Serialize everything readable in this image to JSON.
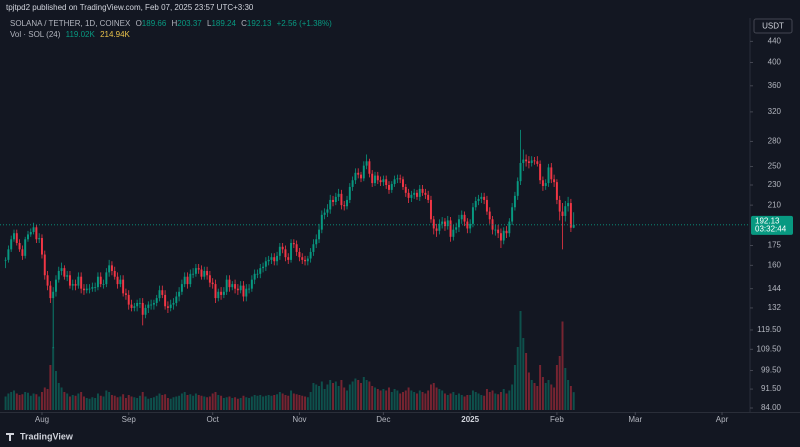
{
  "header": {
    "published": "tpjtpd2 published on TradingView.com, Feb 07, 2025 23:57 UTC+3:30",
    "symbol": "SOLANA / TETHER, 1D, COINEX",
    "o": "O",
    "h": "H",
    "l": "L",
    "c": "C",
    "change": "+2.56 (+1.38%)",
    "volume_title": "Vol · SOL (24)",
    "volume_ma": "214.94K",
    "currency": "USDT",
    "countdown": "03:32:44",
    "brand": "TradingView"
  },
  "chart_data": {
    "type": "candlestick",
    "log_scale": true,
    "grid": false,
    "up_color": "#089981",
    "down_color": "#f23645",
    "ma_color": "#e8c14a",
    "volume_unit": "K",
    "ylim": [
      82.5,
      489
    ],
    "yticks": [
      440,
      400,
      360,
      320,
      280,
      250,
      230,
      210,
      175,
      160,
      144,
      132,
      {
        "value": 119.5,
        "label": "119.50"
      },
      {
        "value": 109.5,
        "label": "109.50"
      },
      {
        "value": 99.5,
        "label": "99.50"
      },
      {
        "value": 91.5,
        "label": "91.50"
      },
      {
        "value": 84,
        "label": "84.00"
      }
    ],
    "xlim": [
      -2,
      266
    ],
    "xticks": [
      {
        "value": 13,
        "label": "Aug"
      },
      {
        "value": 44,
        "label": "Sep"
      },
      {
        "value": 74,
        "label": "Oct"
      },
      {
        "value": 105,
        "label": "Nov"
      },
      {
        "value": 135,
        "label": "Dec"
      },
      {
        "value": 166,
        "label": "2025"
      },
      {
        "value": 197,
        "label": "Feb"
      },
      {
        "value": 225,
        "label": "Mar"
      },
      {
        "value": 256,
        "label": "Apr"
      }
    ],
    "close": [
      164,
      172,
      180,
      185,
      177,
      172,
      167,
      180,
      184,
      186,
      190,
      180,
      181,
      168,
      153,
      146,
      138,
      142,
      150,
      156,
      158,
      152,
      153,
      146,
      147,
      146,
      152,
      144,
      143,
      144,
      144,
      145,
      145,
      152,
      147,
      147,
      155,
      160,
      156,
      152,
      147,
      150,
      141,
      140,
      134,
      132,
      133,
      135,
      135,
      128,
      132,
      134,
      134,
      135,
      138,
      143,
      140,
      133,
      132,
      134,
      135,
      139,
      142,
      147,
      152,
      147,
      154,
      154,
      158,
      157,
      152,
      156,
      153,
      148,
      147,
      138,
      142,
      140,
      142,
      150,
      145,
      147,
      144,
      143,
      146,
      139,
      144,
      144,
      150,
      154,
      154,
      158,
      159,
      163,
      164,
      166,
      163,
      167,
      174,
      172,
      166,
      164,
      177,
      176,
      170,
      166,
      164,
      163,
      165,
      170,
      176,
      180,
      188,
      201,
      203,
      206,
      215,
      213,
      218,
      221,
      210,
      209,
      215,
      228,
      235,
      243,
      241,
      237,
      251,
      256,
      242,
      232,
      240,
      235,
      233,
      236,
      230,
      225,
      231,
      236,
      237,
      236,
      228,
      222,
      217,
      220,
      222,
      218,
      226,
      222,
      220,
      215,
      197,
      189,
      187,
      193,
      195,
      191,
      196,
      182,
      188,
      190,
      197,
      201,
      195,
      189,
      193,
      208,
      214,
      216,
      218,
      215,
      204,
      197,
      188,
      188,
      185,
      179,
      187,
      185,
      195,
      208,
      219,
      234,
      254,
      258,
      256,
      254,
      257,
      256,
      253,
      235,
      229,
      232,
      249,
      236,
      233,
      215,
      204,
      200,
      209,
      212,
      189.66,
      192.13
    ],
    "high": [
      166,
      175,
      183,
      188,
      188,
      180,
      175,
      182,
      187,
      189,
      194,
      192,
      185,
      184,
      171,
      156,
      149,
      145,
      153,
      159,
      162,
      160,
      156,
      156,
      150,
      150,
      155,
      155,
      147,
      147,
      147,
      148,
      148,
      155,
      155,
      150,
      158,
      164,
      163,
      159,
      155,
      153,
      153,
      144,
      143,
      137,
      135,
      137,
      138,
      138,
      134,
      136,
      137,
      137,
      140,
      146,
      146,
      143,
      136,
      137,
      138,
      142,
      145,
      150,
      155,
      155,
      157,
      158,
      161,
      161,
      160,
      159,
      159,
      156,
      151,
      150,
      144,
      145,
      145,
      153,
      153,
      149,
      150,
      147,
      149,
      149,
      147,
      147,
      153,
      157,
      157,
      161,
      162,
      166,
      167,
      169,
      169,
      170,
      177,
      177,
      175,
      169,
      180,
      180,
      179,
      173,
      169,
      167,
      167,
      173,
      180,
      184,
      193,
      205,
      207,
      211,
      220,
      219,
      222,
      226,
      225,
      214,
      219,
      232,
      239,
      248,
      248,
      244,
      256,
      264,
      259,
      246,
      244,
      244,
      239,
      240,
      240,
      234,
      234,
      240,
      241,
      241,
      239,
      231,
      226,
      224,
      226,
      225,
      230,
      230,
      226,
      224,
      219,
      200,
      193,
      197,
      199,
      198,
      200,
      199,
      192,
      194,
      201,
      205,
      204,
      198,
      197,
      212,
      218,
      220,
      222,
      222,
      219,
      208,
      200,
      192,
      192,
      189,
      190,
      191,
      198,
      212,
      223,
      238,
      295,
      270,
      264,
      262,
      262,
      261,
      262,
      257,
      239,
      236,
      253,
      254,
      241,
      236,
      219,
      212,
      214,
      218,
      216,
      203.37
    ],
    "low": [
      158,
      162,
      170,
      178,
      175,
      170,
      164,
      165,
      178,
      182,
      184,
      177,
      177,
      165,
      150,
      143,
      135,
      110,
      139,
      148,
      153,
      150,
      149,
      144,
      143,
      143,
      144,
      141,
      140,
      141,
      141,
      142,
      142,
      143,
      145,
      144,
      145,
      152,
      153,
      150,
      144,
      145,
      139,
      137,
      131,
      130,
      130,
      130,
      132,
      122,
      126,
      129,
      131,
      131,
      133,
      136,
      138,
      131,
      129,
      130,
      131,
      133,
      136,
      140,
      145,
      144,
      145,
      151,
      152,
      154,
      150,
      150,
      150,
      145,
      144,
      135,
      136,
      137,
      138,
      140,
      142,
      143,
      141,
      140,
      141,
      136,
      136,
      141,
      142,
      147,
      151,
      151,
      155,
      156,
      160,
      161,
      160,
      160,
      164,
      169,
      163,
      161,
      162,
      173,
      167,
      163,
      161,
      160,
      160,
      162,
      167,
      173,
      177,
      185,
      197,
      199,
      202,
      209,
      210,
      214,
      206,
      205,
      206,
      212,
      224,
      231,
      237,
      233,
      234,
      247,
      238,
      228,
      229,
      231,
      229,
      229,
      226,
      221,
      222,
      228,
      232,
      232,
      225,
      218,
      212,
      213,
      216,
      215,
      214,
      219,
      216,
      212,
      194,
      184,
      182,
      184,
      189,
      187,
      188,
      178,
      179,
      185,
      186,
      193,
      191,
      185,
      185,
      190,
      205,
      210,
      212,
      211,
      201,
      193,
      184,
      183,
      181,
      173,
      176,
      181,
      182,
      192,
      205,
      215,
      230,
      245,
      250,
      248,
      250,
      252,
      250,
      231,
      224,
      225,
      228,
      232,
      228,
      211,
      196,
      172,
      195,
      204,
      186,
      189.24
    ],
    "volume": [
      90,
      110,
      120,
      130,
      110,
      100,
      105,
      120,
      115,
      95,
      110,
      105,
      90,
      120,
      150,
      140,
      300,
      420,
      260,
      180,
      150,
      120,
      110,
      90,
      100,
      95,
      110,
      120,
      90,
      80,
      75,
      85,
      80,
      110,
      95,
      90,
      130,
      120,
      100,
      95,
      85,
      90,
      105,
      80,
      100,
      90,
      85,
      80,
      95,
      120,
      90,
      75,
      80,
      85,
      95,
      110,
      100,
      105,
      80,
      75,
      85,
      90,
      95,
      110,
      120,
      100,
      105,
      95,
      110,
      100,
      95,
      90,
      85,
      90,
      110,
      120,
      100,
      95,
      80,
      85,
      90,
      80,
      85,
      75,
      80,
      95,
      85,
      80,
      90,
      100,
      95,
      100,
      90,
      95,
      100,
      95,
      100,
      105,
      120,
      110,
      100,
      95,
      130,
      110,
      105,
      100,
      95,
      90,
      85,
      120,
      180,
      170,
      160,
      190,
      140,
      170,
      200,
      180,
      190,
      160,
      200,
      150,
      130,
      170,
      190,
      210,
      200,
      180,
      220,
      200,
      190,
      160,
      150,
      140,
      130,
      140,
      130,
      150,
      120,
      140,
      130,
      110,
      120,
      130,
      150,
      130,
      120,
      110,
      130,
      120,
      110,
      130,
      170,
      180,
      150,
      140,
      130,
      110,
      100,
      110,
      120,
      100,
      110,
      100,
      90,
      100,
      100,
      130,
      120,
      110,
      100,
      95,
      140,
      120,
      130,
      110,
      105,
      120,
      140,
      110,
      130,
      170,
      300,
      420,
      660,
      480,
      380,
      250,
      200,
      180,
      160,
      300,
      220,
      180,
      200,
      170,
      150,
      300,
      360,
      590,
      280,
      200,
      160,
      119.02
    ]
  }
}
